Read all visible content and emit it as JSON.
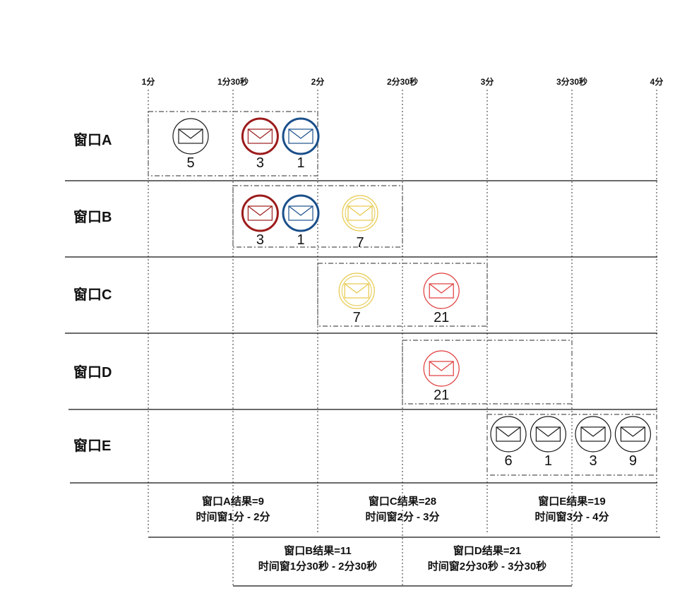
{
  "time_axis": {
    "ticks": [
      "1分",
      "1分30秒",
      "2分",
      "2分30秒",
      "3分",
      "3分30秒",
      "4分"
    ]
  },
  "rows": [
    {
      "label": "窗口A",
      "span": [
        0,
        2
      ],
      "messages": [
        {
          "value": "5",
          "color": "#1a1a1a",
          "tick": 0.5
        },
        {
          "value": "3",
          "color": "#9c1b1b",
          "tick": 1.32,
          "thick": true
        },
        {
          "value": "1",
          "color": "#1a4f8a",
          "tick": 1.8,
          "thick": true
        }
      ]
    },
    {
      "label": "窗口B",
      "span": [
        1,
        3
      ],
      "messages": [
        {
          "value": "3",
          "color": "#9c1b1b",
          "tick": 1.32,
          "thick": true
        },
        {
          "value": "1",
          "color": "#1a4f8a",
          "tick": 1.8,
          "thick": true
        },
        {
          "value": "7",
          "color": "#e6c84a",
          "tick": 2.5,
          "double": true
        }
      ]
    },
    {
      "label": "窗口C",
      "span": [
        2,
        4
      ],
      "messages": [
        {
          "value": "7",
          "color": "#e6c84a",
          "tick": 2.46,
          "double": true
        },
        {
          "value": "21",
          "color": "#e03a3a",
          "tick": 3.46
        }
      ]
    },
    {
      "label": "窗口D",
      "span": [
        3,
        5
      ],
      "messages": [
        {
          "value": "21",
          "color": "#e03a3a",
          "tick": 3.46
        }
      ]
    },
    {
      "label": "窗口E",
      "span": [
        4,
        6
      ],
      "messages": [
        {
          "value": "6",
          "color": "#1a1a1a",
          "tick": 4.25
        },
        {
          "value": "1",
          "color": "#1a1a1a",
          "tick": 4.72
        },
        {
          "value": "3",
          "color": "#1a1a1a",
          "tick": 5.25
        },
        {
          "value": "9",
          "color": "#1a1a1a",
          "tick": 5.72
        }
      ]
    }
  ],
  "results_top": [
    {
      "title": "窗口A结果=9",
      "range": "时间窗1分 - 2分",
      "span": [
        0,
        2
      ]
    },
    {
      "title": "窗口C结果=28",
      "range": "时间窗2分 - 3分",
      "span": [
        2,
        4
      ]
    },
    {
      "title": "窗口E结果=19",
      "range": "时间窗3分 - 4分",
      "span": [
        4,
        6
      ]
    }
  ],
  "results_bottom": [
    {
      "title": "窗口B结果=11",
      "range": "时间窗1分30秒 - 2分30秒",
      "span": [
        1,
        3
      ]
    },
    {
      "title": "窗口D结果=21",
      "range": "时间窗2分30秒 - 3分30秒",
      "span": [
        3,
        5
      ]
    }
  ]
}
